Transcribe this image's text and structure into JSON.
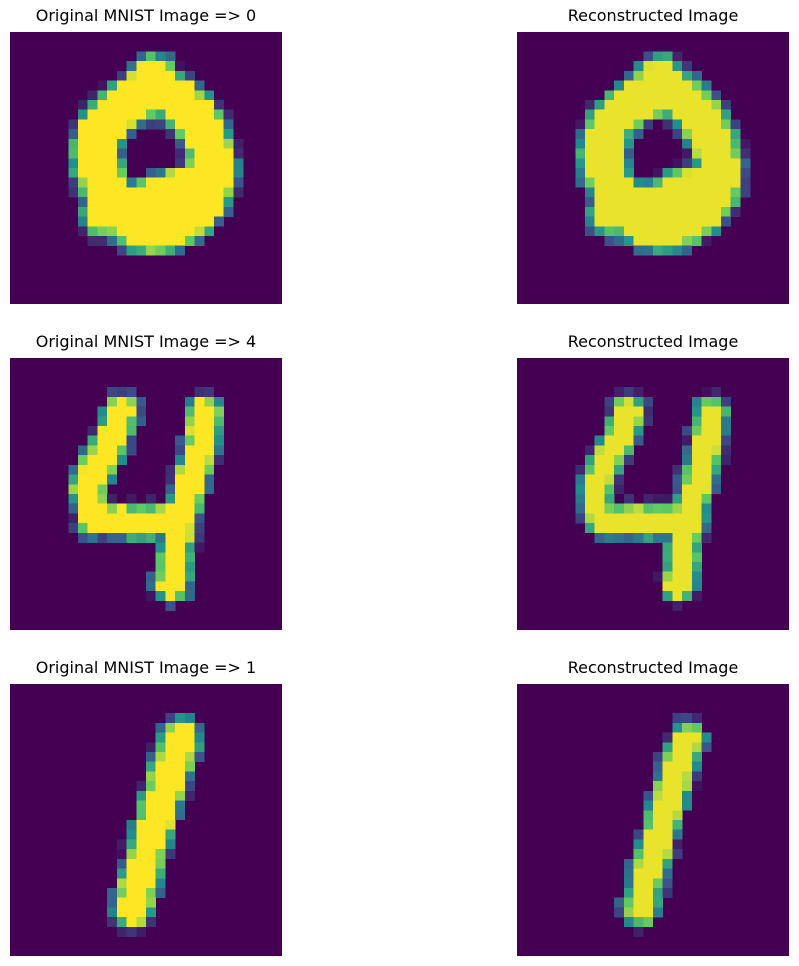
{
  "figure": {
    "colormap": "viridis",
    "background_color": "#440154",
    "axes_visible": false
  },
  "chart_data": [
    {
      "type": "heatmap",
      "title": "Original MNIST Image => 0",
      "digit": 0,
      "grid": [
        28,
        28
      ],
      "cmap": "viridis"
    },
    {
      "type": "heatmap",
      "title": "Reconstructed Image",
      "digit": 0,
      "grid": [
        28,
        28
      ],
      "cmap": "viridis"
    },
    {
      "type": "heatmap",
      "title": "Original MNIST Image => 4",
      "digit": 4,
      "grid": [
        28,
        28
      ],
      "cmap": "viridis"
    },
    {
      "type": "heatmap",
      "title": "Reconstructed Image",
      "digit": 4,
      "grid": [
        28,
        28
      ],
      "cmap": "viridis"
    },
    {
      "type": "heatmap",
      "title": "Original MNIST Image => 1",
      "digit": 1,
      "grid": [
        28,
        28
      ],
      "cmap": "viridis"
    },
    {
      "type": "heatmap",
      "title": "Reconstructed Image",
      "digit": 1,
      "grid": [
        28,
        28
      ],
      "cmap": "viridis"
    }
  ]
}
